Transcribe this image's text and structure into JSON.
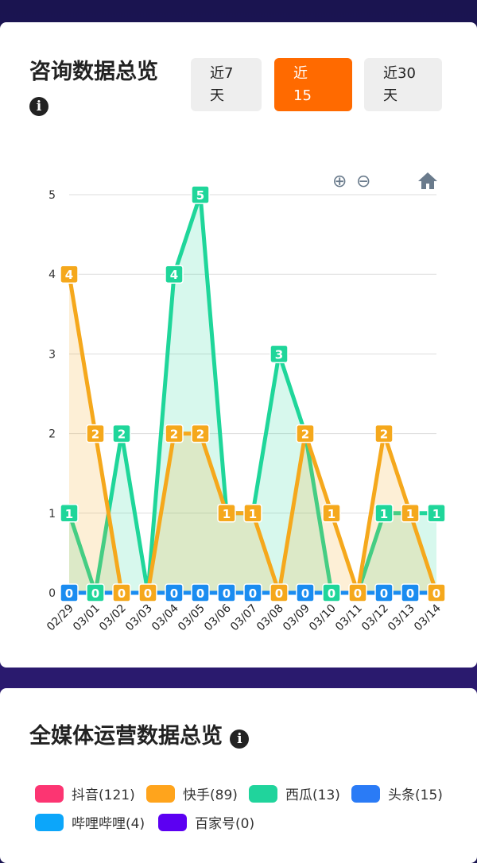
{
  "consult": {
    "title": "咨询数据总览",
    "info_icon": "info-icon",
    "ranges": [
      {
        "label": "近7天",
        "active": false
      },
      {
        "label": "近15天",
        "active": true
      },
      {
        "label": "近30天",
        "active": false
      }
    ],
    "toolbar": {
      "zoom_in": "zoom-in-icon",
      "zoom_out": "zoom-out-icon",
      "home": "home-icon"
    }
  },
  "chart_data": {
    "type": "area",
    "ylim": [
      0,
      5
    ],
    "yticks": [
      "0",
      "1",
      "2",
      "3",
      "4",
      "5"
    ],
    "grid": true,
    "categories": [
      "02/29",
      "03/01",
      "03/02",
      "03/03",
      "03/04",
      "03/05",
      "03/06",
      "03/07",
      "03/08",
      "03/09",
      "03/10",
      "03/11",
      "03/12",
      "03/13",
      "03/14"
    ],
    "series": [
      {
        "color": "#1fd69a",
        "values": [
          1,
          0,
          2,
          0,
          4,
          5,
          1,
          1,
          3,
          2,
          0,
          0,
          1,
          1,
          1
        ]
      },
      {
        "color": "#f5a81c",
        "values": [
          4,
          2,
          0,
          0,
          2,
          2,
          1,
          1,
          0,
          2,
          1,
          0,
          2,
          1,
          0
        ]
      },
      {
        "color": "#1a8cf0",
        "values": [
          0,
          0,
          0,
          0,
          0,
          0,
          0,
          0,
          0,
          0,
          0,
          0,
          0,
          0,
          0
        ]
      }
    ]
  },
  "media": {
    "title": "全媒体运营数据总览",
    "info_icon": "info-icon",
    "legend": [
      {
        "label": "抖音(121)",
        "color": "#fc3572"
      },
      {
        "label": "快手(89)",
        "color": "#ffa41c"
      },
      {
        "label": "西瓜(13)",
        "color": "#20d49c"
      },
      {
        "label": "头条(15)",
        "color": "#2a7bf6"
      },
      {
        "label": "哔哩哔哩(4)",
        "color": "#0ca6fa"
      },
      {
        "label": "百家号(0)",
        "color": "#5c00f2"
      }
    ]
  }
}
